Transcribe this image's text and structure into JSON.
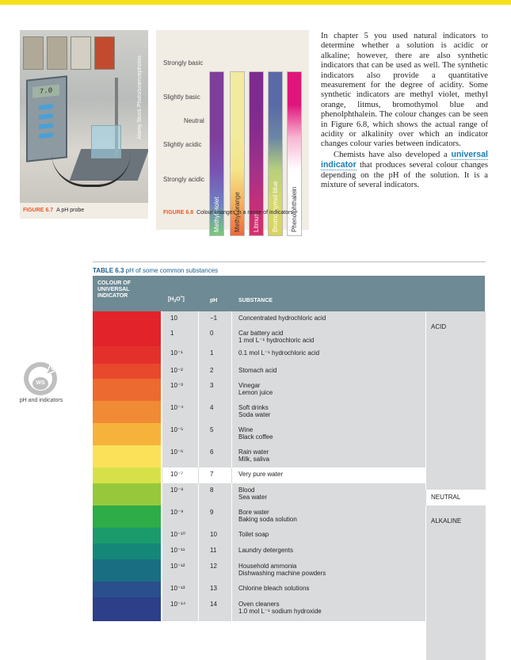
{
  "fig67": {
    "label": "FIGURE 6.7",
    "caption": "A pH probe",
    "credit": "Alamy Stock Photo/sciencephotos",
    "meter_reading": "7.0"
  },
  "fig68": {
    "label": "FIGURE 6.8",
    "caption": "Colour changes in a range of indicators",
    "levels": [
      "Strongly basic",
      "Slightly basic",
      "Neutral",
      "Slightly acidic",
      "Strongly acidic"
    ],
    "strips": [
      {
        "name": "Methyl violet",
        "colors": [
          "#7e3f9a",
          "#7e3f9a",
          "#7e3f9a",
          "#7a52b0",
          "#6f7ec2",
          "#78c97a"
        ]
      },
      {
        "name": "Methyl orange",
        "colors": [
          "#f2ea9c",
          "#f2ea9c",
          "#f2ea9c",
          "#f4e58a",
          "#f6b15a",
          "#ee6a3a"
        ]
      },
      {
        "name": "Litmus",
        "colors": [
          "#7d2b8f",
          "#7d2b8f",
          "#8a2d8e",
          "#a2328a",
          "#c1307a",
          "#d6306a"
        ]
      },
      {
        "name": "Bromothymol blue",
        "colors": [
          "#5a6aa8",
          "#5a6aa8",
          "#6a86a6",
          "#b7d07a",
          "#d7d86a",
          "#d9d45a"
        ]
      },
      {
        "name": "Phenolphthalein",
        "colors": [
          "#e0157a",
          "#e0157a",
          "#f7b6d2",
          "#ffffff",
          "#ffffff",
          "#ffffff"
        ]
      }
    ]
  },
  "body": {
    "para1": "In chapter 5 you used natural indicators to determine whether a solution is acidic or alkaline; however, there are also synthetic indicators that can be used as well. The synthetic indicators also provide a quantitative measurement for the degree of acidity. Some synthetic indicators are methyl violet, methyl orange, litmus, bromothymol blue and phenolphthalein. The colour changes can be seen in Figure 6.8, which shows the actual range of acidity or alkalinity over which an indicator changes colour varies between indicators.",
    "para2_before": "Chemists have also developed a",
    "para2_link": "universal indicator",
    "para2_after": "that produces several colour changes depending on the pH of the solution. It is a mixture of several indicators."
  },
  "ws": {
    "badge": "WS",
    "caption": "pH and indicators"
  },
  "table": {
    "label": "TABLE 6.3",
    "title": "pH of some common substances",
    "headers": {
      "colour": "COLOUR OF UNIVERSAL INDICATOR",
      "conc": "[H3O+]",
      "ph": "pH",
      "substance": "SUBSTANCE"
    },
    "rows": [
      {
        "color": "#e2232a",
        "conc": "10",
        "ph": "−1",
        "substance": [
          "Concentrated hydrochloric acid"
        ]
      },
      {
        "color": "#e2232a",
        "conc": "1",
        "ph": "0",
        "substance": [
          "Car battery acid",
          "1 mol L⁻¹ hydrochloric acid"
        ]
      },
      {
        "color": "#e4302a",
        "conc": "10⁻¹",
        "ph": "1",
        "substance": [
          "0.1 mol L⁻¹ hydrochloric acid"
        ]
      },
      {
        "color": "#e8482c",
        "conc": "10⁻²",
        "ph": "2",
        "substance": [
          "Stomach acid"
        ]
      },
      {
        "color": "#ec6a30",
        "conc": "10⁻³",
        "ph": "3",
        "substance": [
          "Vinegar",
          "Lemon juice"
        ]
      },
      {
        "color": "#f18a35",
        "conc": "10⁻⁴",
        "ph": "4",
        "substance": [
          "Soft drinks",
          "Soda water"
        ]
      },
      {
        "color": "#f6b33c",
        "conc": "10⁻⁵",
        "ph": "5",
        "substance": [
          "Wine",
          "Black coffee"
        ]
      },
      {
        "color": "#fbe15a",
        "conc": "10⁻⁶",
        "ph": "6",
        "substance": [
          "Rain water",
          "Milk, saliva"
        ]
      },
      {
        "color": "#d6e14a",
        "conc": "10⁻⁷",
        "ph": "7",
        "substance": [
          "Very pure water"
        ]
      },
      {
        "color": "#97c83c",
        "conc": "10⁻⁸",
        "ph": "8",
        "substance": [
          "Blood",
          "Sea water"
        ]
      },
      {
        "color": "#2eac48",
        "conc": "10⁻⁹",
        "ph": "9",
        "substance": [
          "Bore water",
          "Baking soda solution"
        ]
      },
      {
        "color": "#1b9a6c",
        "conc": "10⁻¹⁰",
        "ph": "10",
        "substance": [
          "Toilet soap"
        ]
      },
      {
        "color": "#158778",
        "conc": "10⁻¹¹",
        "ph": "11",
        "substance": [
          "Laundry detergents"
        ]
      },
      {
        "color": "#1a6e82",
        "conc": "10⁻¹²",
        "ph": "12",
        "substance": [
          "Household ammonia",
          "Dishwashing machine powders"
        ]
      },
      {
        "color": "#2a4f8c",
        "conc": "10⁻¹³",
        "ph": "13",
        "substance": [
          "Chlorine bleach solutions"
        ]
      },
      {
        "color": "#2c3f88",
        "conc": "10⁻¹⁴",
        "ph": "14",
        "substance": [
          "Oven cleaners",
          "1.0 mol L⁻¹ sodium hydroxide"
        ]
      }
    ],
    "categories": {
      "acid": "ACID",
      "neutral": "NEUTRAL",
      "alkaline": "ALKALINE"
    }
  }
}
